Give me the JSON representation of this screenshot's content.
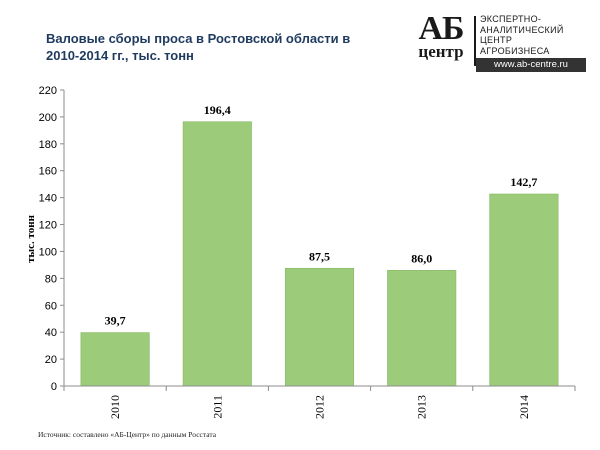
{
  "logo": {
    "mark_top": "АБ",
    "mark_bottom": "центр",
    "lines": [
      "ЭКСПЕРТНО-",
      "АНАЛИТИЧЕСКИЙ",
      "ЦЕНТР",
      "АГРОБИЗНЕСА"
    ],
    "url": "www.ab-centre.ru"
  },
  "source": "Источник: составлено «АБ-Центр» по данным Росстата",
  "colors": {
    "bar": "#9ccc7a",
    "bar_edge": "#86b864",
    "axis": "#8c8c8c",
    "text": "#000000"
  },
  "chart_data": {
    "type": "bar",
    "title": "Валовые сборы проса в Ростовской области в 2010-2014 гг., тыс. тонн",
    "ylabel": "тыс. тонн",
    "xlabel": "",
    "categories": [
      "2010",
      "2011",
      "2012",
      "2013",
      "2014"
    ],
    "values": [
      39.7,
      196.4,
      87.5,
      86.0,
      142.7
    ],
    "value_labels": [
      "39,7",
      "196,4",
      "87,5",
      "86,0",
      "142,7"
    ],
    "ylim": [
      0,
      220
    ],
    "yticks": [
      0,
      20,
      40,
      60,
      80,
      100,
      120,
      140,
      160,
      180,
      200,
      220
    ],
    "grid": false,
    "legend": "none"
  }
}
